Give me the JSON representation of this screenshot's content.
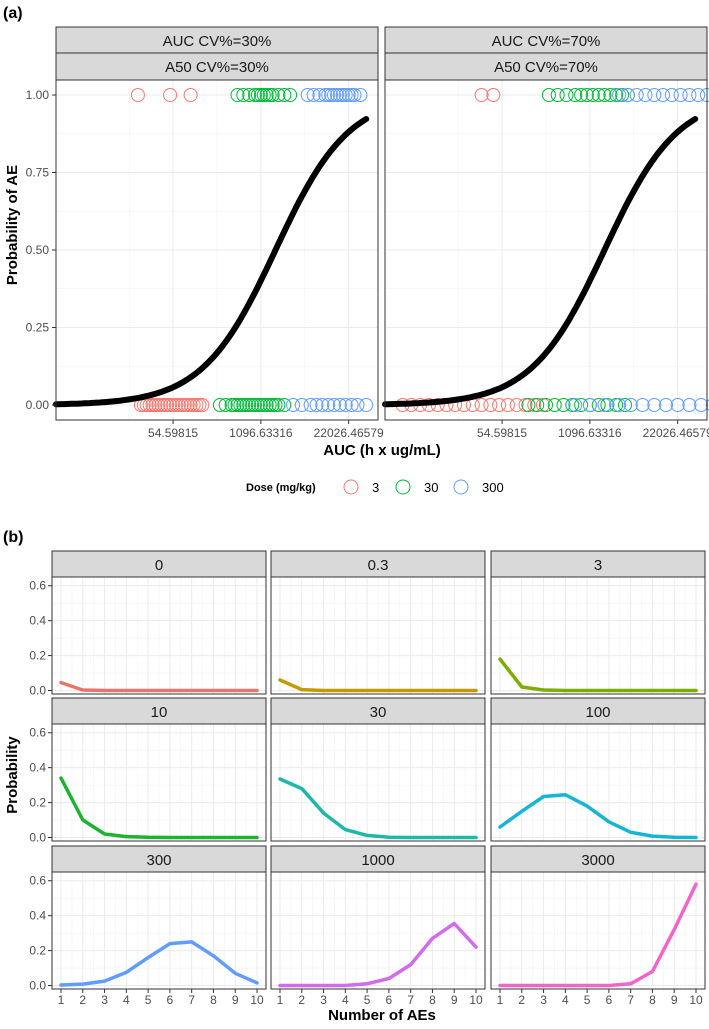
{
  "chart_data": [
    {
      "panel_label": "(a)",
      "type": "line+scatter",
      "ylabel": "Probability of AE",
      "xlabel": "AUC (h x ug/mL)",
      "xscale": "log",
      "xlim": [
        1,
        60000
      ],
      "ylim": [
        0,
        1
      ],
      "yticks": [
        0,
        0.25,
        0.5,
        0.75,
        1
      ],
      "ytick_labels": [
        "0.00",
        "0.25",
        "0.50",
        "0.75",
        "1.00"
      ],
      "xticks": [
        54.59815,
        1096.63316,
        22026.46579
      ],
      "xtick_labels": [
        "54.59815",
        "1096.63316",
        "22026.46579"
      ],
      "legend_title": "Dose (mg/kg)",
      "legend_position": "bottom",
      "legend": [
        {
          "label": "3",
          "color": "#F8766D"
        },
        {
          "label": "30",
          "color": "#00BA38"
        },
        {
          "label": "300",
          "color": "#619CFF"
        }
      ],
      "curve": {
        "model": "logistic in ln(AUC)",
        "E0_logit": -6.0,
        "slope": 0.8,
        "ln_ED50": 7.2
      },
      "facets": [
        {
          "strip1": "AUC CV%=30%",
          "strip2": "A50 CV%=30%",
          "points": [
            {
              "dose": "3",
              "y": 1,
              "lnx": [
                2.8,
                3.9,
                4.6
              ]
            },
            {
              "dose": "3",
              "y": 0,
              "lnx": [
                2.9,
                3.0,
                3.1,
                3.2,
                3.3,
                3.4,
                3.5,
                3.6,
                3.7,
                3.8,
                3.9,
                4.0,
                4.1,
                4.2,
                4.3,
                4.4,
                4.5,
                4.6,
                4.7,
                4.8,
                4.9,
                5.0
              ]
            },
            {
              "dose": "30",
              "y": 1,
              "lnx": [
                6.2,
                6.4,
                6.6,
                6.8,
                6.9,
                7.0,
                7.1,
                7.2,
                7.3,
                7.4,
                7.6,
                7.8,
                8.0
              ]
            },
            {
              "dose": "30",
              "y": 0,
              "lnx": [
                5.6,
                5.8,
                6.0,
                6.1,
                6.2,
                6.3,
                6.4,
                6.5,
                6.6,
                6.7,
                6.8,
                6.9,
                7.0,
                7.1,
                7.2,
                7.3,
                7.4,
                7.5,
                7.6,
                7.8
              ]
            },
            {
              "dose": "300",
              "y": 1,
              "lnx": [
                8.6,
                8.8,
                9.0,
                9.2,
                9.3,
                9.4,
                9.5,
                9.6,
                9.7,
                9.8,
                9.9,
                10.0,
                10.1,
                10.2,
                10.4
              ]
            },
            {
              "dose": "300",
              "y": 0,
              "lnx": [
                8.1,
                8.4,
                8.7,
                8.9,
                9.1,
                9.3,
                9.5,
                9.7,
                9.9,
                10.1,
                10.3,
                10.6
              ]
            }
          ]
        },
        {
          "strip1": "AUC CV%=70%",
          "strip2": "A50 CV%=70%",
          "points": [
            {
              "dose": "3",
              "y": 1,
              "lnx": [
                3.3,
                3.7
              ]
            },
            {
              "dose": "3",
              "y": 0,
              "lnx": [
                0.6,
                0.9,
                1.2,
                1.5,
                1.8,
                2.1,
                2.4,
                2.7,
                3.0,
                3.3,
                3.6,
                3.9,
                4.2,
                4.5,
                4.8,
                5.1,
                5.4
              ]
            },
            {
              "dose": "30",
              "y": 1,
              "lnx": [
                5.6,
                5.9,
                6.2,
                6.5,
                6.7,
                6.9,
                7.1,
                7.3,
                7.5,
                7.7,
                7.9,
                8.1,
                8.3
              ]
            },
            {
              "dose": "30",
              "y": 0,
              "lnx": [
                4.9,
                5.2,
                5.5,
                5.8,
                6.1,
                6.4,
                6.7,
                7.0,
                7.3,
                7.6,
                7.9,
                8.2
              ]
            },
            {
              "dose": "300",
              "y": 1,
              "lnx": [
                8.0,
                8.3,
                8.6,
                8.9,
                9.2,
                9.5,
                9.8,
                10.1,
                10.4,
                10.7,
                11.0,
                11.4
              ]
            },
            {
              "dose": "300",
              "y": 0,
              "lnx": [
                6.5,
                7.0,
                7.5,
                8.0,
                8.4,
                8.8,
                9.2,
                9.6,
                10.0,
                10.4,
                10.8,
                11.2
              ]
            }
          ]
        }
      ]
    },
    {
      "panel_label": "(b)",
      "type": "line",
      "ylabel": "Probability",
      "xlabel": "Number of AEs",
      "x": [
        1,
        2,
        3,
        4,
        5,
        6,
        7,
        8,
        9,
        10
      ],
      "xtick_labels": [
        "1",
        "2",
        "3",
        "4",
        "5",
        "6",
        "7",
        "8",
        "9",
        "10"
      ],
      "ylim": [
        -0.02,
        0.65
      ],
      "yticks": [
        0,
        0.2,
        0.4,
        0.6
      ],
      "ytick_labels": [
        "0.0",
        "0.2",
        "0.4",
        "0.6"
      ],
      "series": [
        {
          "name": "0",
          "color": "#E7756A",
          "values": [
            0.045,
            0.003,
            0,
            0,
            0,
            0,
            0,
            0,
            0,
            0
          ]
        },
        {
          "name": "0.3",
          "color": "#C49A00",
          "values": [
            0.06,
            0.005,
            0,
            0,
            0,
            0,
            0,
            0,
            0,
            0
          ]
        },
        {
          "name": "3",
          "color": "#7CAE00",
          "values": [
            0.18,
            0.02,
            0.003,
            0,
            0,
            0,
            0,
            0,
            0,
            0
          ]
        },
        {
          "name": "10",
          "color": "#1DB231",
          "values": [
            0.34,
            0.1,
            0.02,
            0.005,
            0.001,
            0,
            0,
            0,
            0,
            0
          ]
        },
        {
          "name": "30",
          "color": "#1EB8A9",
          "values": [
            0.335,
            0.28,
            0.14,
            0.045,
            0.012,
            0.002,
            0,
            0,
            0,
            0
          ]
        },
        {
          "name": "100",
          "color": "#15B5D6",
          "values": [
            0.06,
            0.15,
            0.235,
            0.245,
            0.18,
            0.09,
            0.03,
            0.008,
            0.002,
            0
          ]
        },
        {
          "name": "300",
          "color": "#619CFF",
          "values": [
            0.003,
            0.008,
            0.025,
            0.075,
            0.16,
            0.24,
            0.25,
            0.17,
            0.07,
            0.015
          ]
        },
        {
          "name": "1000",
          "color": "#D26BEE",
          "values": [
            0,
            0,
            0,
            0,
            0.01,
            0.04,
            0.12,
            0.27,
            0.355,
            0.22
          ]
        },
        {
          "name": "3000",
          "color": "#F066C8",
          "values": [
            0,
            0,
            0,
            0,
            0,
            0,
            0.01,
            0.08,
            0.32,
            0.58
          ]
        }
      ]
    }
  ]
}
